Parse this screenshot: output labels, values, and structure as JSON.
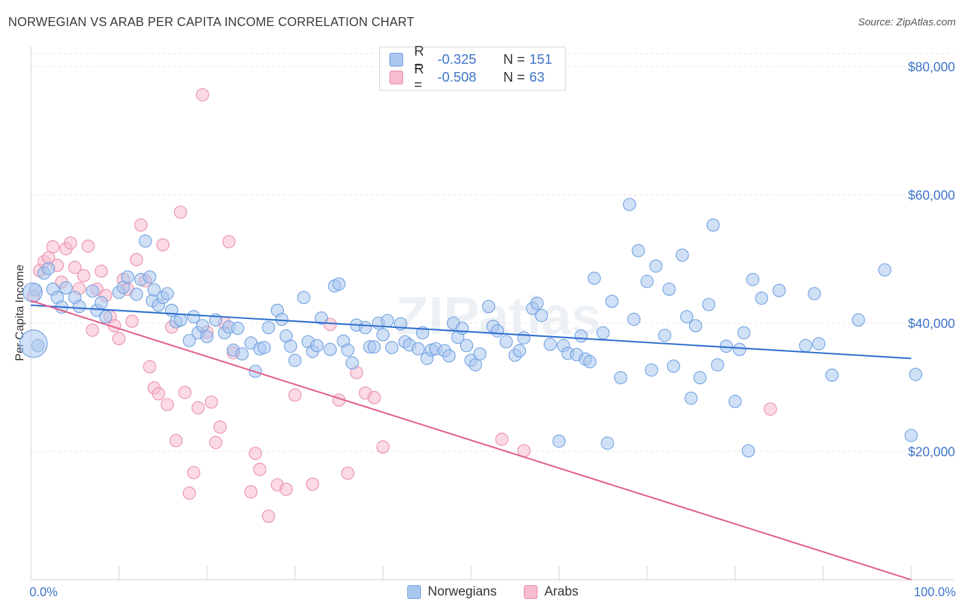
{
  "title": "NORWEGIAN VS ARAB PER CAPITA INCOME CORRELATION CHART",
  "source": "Source: ZipAtlas.com",
  "watermark": "ZIPatlas",
  "legend": {
    "rows": [
      {
        "r_label": "R =",
        "r_value": "-0.325",
        "n_label": "N =",
        "n_value": "151",
        "color": "#a9c7ef",
        "border": "#6a9de0"
      },
      {
        "r_label": "R =",
        "r_value": "-0.508",
        "n_label": "N =",
        "n_value": "63",
        "color": "#f7bccd",
        "border": "#e98aa7"
      }
    ]
  },
  "bottom_legend": [
    {
      "label": "Norwegians",
      "color": "#a9c7ef"
    },
    {
      "label": "Arabs",
      "color": "#f7bccd"
    }
  ],
  "chart_data": {
    "type": "scatter",
    "ylabel": "Per Capita Income",
    "x_tick_labels": [
      "0.0%",
      "100.0%"
    ],
    "y_tick_labels": [
      "$20,000",
      "$40,000",
      "$60,000",
      "$80,000"
    ],
    "xlim": [
      0,
      100
    ],
    "ylim": [
      0,
      80000
    ],
    "grid": true,
    "series": [
      {
        "name": "Norwegians",
        "color": "#6a9de0",
        "fill": "#a9c7ef",
        "trend": {
          "x": [
            0,
            100
          ],
          "y": [
            42800,
            34500
          ],
          "color": "#2f6fce"
        },
        "points": [
          [
            0.5,
            45200
          ],
          [
            0.8,
            36500
          ],
          [
            1.5,
            47800
          ],
          [
            2,
            48500
          ],
          [
            2.5,
            45300
          ],
          [
            3,
            44000
          ],
          [
            3.5,
            42500
          ],
          [
            4,
            45500
          ],
          [
            5,
            44000
          ],
          [
            5.5,
            42600
          ],
          [
            7,
            45000
          ],
          [
            7.5,
            42000
          ],
          [
            8,
            43200
          ],
          [
            8.5,
            41000
          ],
          [
            10,
            44800
          ],
          [
            10.5,
            45600
          ],
          [
            11,
            47200
          ],
          [
            12,
            44500
          ],
          [
            12.5,
            46800
          ],
          [
            13,
            52800
          ],
          [
            13.5,
            47200
          ],
          [
            13.8,
            43500
          ],
          [
            14,
            45200
          ],
          [
            14.5,
            42800
          ],
          [
            15,
            44000
          ],
          [
            15.5,
            44600
          ],
          [
            16,
            42000
          ],
          [
            16.5,
            40200
          ],
          [
            17,
            40500
          ],
          [
            18,
            37300
          ],
          [
            18.5,
            41000
          ],
          [
            19,
            38500
          ],
          [
            19.5,
            39600
          ],
          [
            20,
            37900
          ],
          [
            21,
            40500
          ],
          [
            22,
            38500
          ],
          [
            22.5,
            39400
          ],
          [
            23,
            35800
          ],
          [
            23.5,
            39200
          ],
          [
            24,
            35200
          ],
          [
            25,
            36900
          ],
          [
            25.5,
            32500
          ],
          [
            26,
            36000
          ],
          [
            26.5,
            36200
          ],
          [
            27,
            39300
          ],
          [
            28,
            42000
          ],
          [
            28.5,
            40600
          ],
          [
            29,
            38000
          ],
          [
            29.5,
            36400
          ],
          [
            30,
            34200
          ],
          [
            31,
            44000
          ],
          [
            31.5,
            37100
          ],
          [
            32,
            35600
          ],
          [
            32.5,
            36500
          ],
          [
            33,
            40800
          ],
          [
            34,
            35900
          ],
          [
            34.5,
            45800
          ],
          [
            35,
            46100
          ],
          [
            35.5,
            37200
          ],
          [
            36,
            35800
          ],
          [
            36.5,
            33800
          ],
          [
            37,
            39700
          ],
          [
            38,
            39300
          ],
          [
            38.5,
            36300
          ],
          [
            39,
            36300
          ],
          [
            39.5,
            40000
          ],
          [
            40,
            38200
          ],
          [
            40.5,
            40400
          ],
          [
            41,
            36200
          ],
          [
            42,
            39900
          ],
          [
            42.5,
            37100
          ],
          [
            43,
            36600
          ],
          [
            44,
            36000
          ],
          [
            44.5,
            38500
          ],
          [
            45,
            34500
          ],
          [
            45.5,
            35800
          ],
          [
            46,
            36000
          ],
          [
            47,
            35700
          ],
          [
            47.5,
            34900
          ],
          [
            48,
            40000
          ],
          [
            48.5,
            37800
          ],
          [
            49,
            39200
          ],
          [
            49.5,
            36500
          ],
          [
            50,
            34200
          ],
          [
            50.5,
            33500
          ],
          [
            51,
            35200
          ],
          [
            52,
            42600
          ],
          [
            52.5,
            39500
          ],
          [
            53,
            38800
          ],
          [
            54,
            37100
          ],
          [
            55,
            35000
          ],
          [
            55.5,
            35700
          ],
          [
            56,
            37700
          ],
          [
            57,
            42300
          ],
          [
            57.5,
            43100
          ],
          [
            58,
            41200
          ],
          [
            59,
            36700
          ],
          [
            60,
            21600
          ],
          [
            60.5,
            36500
          ],
          [
            61,
            35300
          ],
          [
            62,
            35100
          ],
          [
            62.5,
            38000
          ],
          [
            63,
            34400
          ],
          [
            63.5,
            34000
          ],
          [
            64,
            47000
          ],
          [
            65,
            38500
          ],
          [
            65.5,
            21300
          ],
          [
            66,
            43400
          ],
          [
            67,
            31500
          ],
          [
            68,
            58500
          ],
          [
            68.5,
            40600
          ],
          [
            69,
            51300
          ],
          [
            70,
            46500
          ],
          [
            70.5,
            32700
          ],
          [
            71,
            48900
          ],
          [
            72,
            38100
          ],
          [
            72.5,
            45300
          ],
          [
            73,
            33300
          ],
          [
            74,
            50600
          ],
          [
            74.5,
            41000
          ],
          [
            75,
            28300
          ],
          [
            75.5,
            39600
          ],
          [
            76,
            31500
          ],
          [
            77,
            42900
          ],
          [
            77.5,
            55300
          ],
          [
            78,
            33500
          ],
          [
            79,
            36400
          ],
          [
            80,
            27800
          ],
          [
            80.5,
            35900
          ],
          [
            81,
            38500
          ],
          [
            81.5,
            20100
          ],
          [
            82,
            46800
          ],
          [
            83,
            43900
          ],
          [
            85,
            45100
          ],
          [
            88,
            36500
          ],
          [
            89,
            44600
          ],
          [
            89.5,
            36800
          ],
          [
            91,
            31900
          ],
          [
            94,
            40500
          ],
          [
            97,
            48300
          ],
          [
            100,
            22500
          ],
          [
            100.5,
            32000
          ]
        ]
      },
      {
        "name": "Arabs",
        "color": "#e98aa7",
        "fill": "#f7bccd",
        "trend": {
          "x": [
            0,
            100
          ],
          "y": [
            43500,
            0
          ],
          "color": "#e0628d"
        },
        "points": [
          [
            0.3,
            44200
          ],
          [
            1,
            48200
          ],
          [
            1.5,
            49600
          ],
          [
            2,
            50200
          ],
          [
            2.5,
            51900
          ],
          [
            3,
            49000
          ],
          [
            3.5,
            46400
          ],
          [
            4,
            51600
          ],
          [
            4.5,
            52500
          ],
          [
            5,
            48700
          ],
          [
            5.5,
            45400
          ],
          [
            6,
            47400
          ],
          [
            6.5,
            52000
          ],
          [
            7,
            38900
          ],
          [
            7.5,
            45300
          ],
          [
            8,
            48100
          ],
          [
            8.5,
            44300
          ],
          [
            9,
            41000
          ],
          [
            9.5,
            39600
          ],
          [
            10,
            37600
          ],
          [
            10.5,
            46800
          ],
          [
            11,
            45300
          ],
          [
            11.5,
            40300
          ],
          [
            12,
            49900
          ],
          [
            12.5,
            55300
          ],
          [
            13,
            46600
          ],
          [
            13.5,
            33200
          ],
          [
            14,
            29900
          ],
          [
            14.5,
            29000
          ],
          [
            15,
            52200
          ],
          [
            15.5,
            27300
          ],
          [
            16,
            39400
          ],
          [
            16.5,
            21700
          ],
          [
            17,
            57300
          ],
          [
            17.5,
            29200
          ],
          [
            18,
            13500
          ],
          [
            18.5,
            16700
          ],
          [
            19,
            26800
          ],
          [
            19.5,
            75600
          ],
          [
            20,
            38600
          ],
          [
            20.5,
            27700
          ],
          [
            21,
            21400
          ],
          [
            21.5,
            23800
          ],
          [
            22,
            40000
          ],
          [
            22.5,
            52700
          ],
          [
            23,
            35400
          ],
          [
            25,
            13700
          ],
          [
            25.5,
            19700
          ],
          [
            26,
            17200
          ],
          [
            27,
            9900
          ],
          [
            28,
            14800
          ],
          [
            29,
            14100
          ],
          [
            30,
            28800
          ],
          [
            32,
            14900
          ],
          [
            34,
            39800
          ],
          [
            35,
            28000
          ],
          [
            36,
            16600
          ],
          [
            37,
            32300
          ],
          [
            38,
            29100
          ],
          [
            39,
            28400
          ],
          [
            40,
            20700
          ],
          [
            53.5,
            21900
          ],
          [
            56,
            20100
          ],
          [
            84,
            26600
          ]
        ]
      }
    ]
  }
}
